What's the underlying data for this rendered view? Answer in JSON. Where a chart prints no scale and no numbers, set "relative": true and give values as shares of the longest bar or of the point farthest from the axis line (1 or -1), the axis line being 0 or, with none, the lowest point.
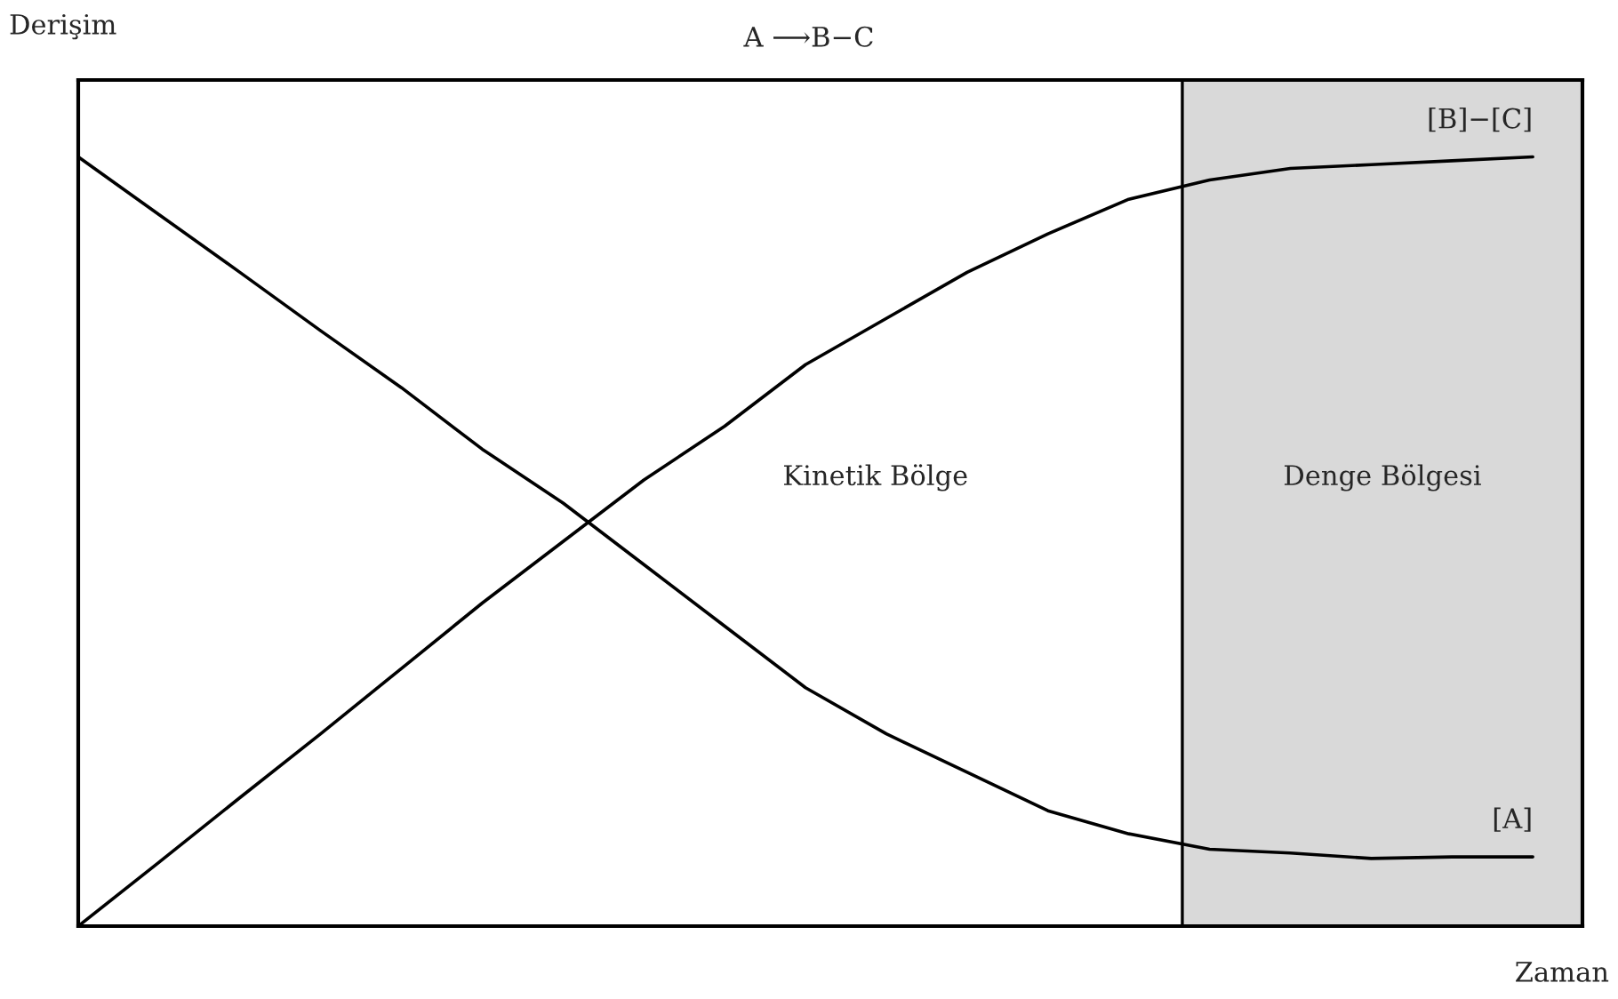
{
  "chart_data": {
    "type": "line",
    "title": "A ⟶B−C",
    "xlabel": "Zaman",
    "ylabel": "Derişim",
    "relative": true,
    "categories": [
      null,
      null,
      null,
      null,
      null,
      null,
      null,
      null,
      null,
      null,
      null,
      null,
      null,
      null,
      null,
      null,
      null,
      null,
      null
    ],
    "series": [
      {
        "name": "[B]−[C]",
        "color": "#000000",
        "values": [
          0,
          0.083,
          0.167,
          0.25,
          0.335,
          0.42,
          0.5,
          0.58,
          0.65,
          0.73,
          0.79,
          0.85,
          0.9,
          0.945,
          0.97,
          0.985,
          0.99,
          0.995,
          1.0
        ]
      },
      {
        "name": "[A]",
        "color": "#000000",
        "values": [
          1.0,
          0.925,
          0.85,
          0.774,
          0.7,
          0.62,
          0.55,
          0.47,
          0.39,
          0.31,
          0.25,
          0.2,
          0.15,
          0.12,
          0.1,
          0.095,
          0.088,
          0.09,
          0.09
        ]
      }
    ],
    "annotations": [
      "Kinetik Bölge",
      "Denge Bölgesi"
    ],
    "marker": "none",
    "line_style": "solid",
    "legend": false
  }
}
